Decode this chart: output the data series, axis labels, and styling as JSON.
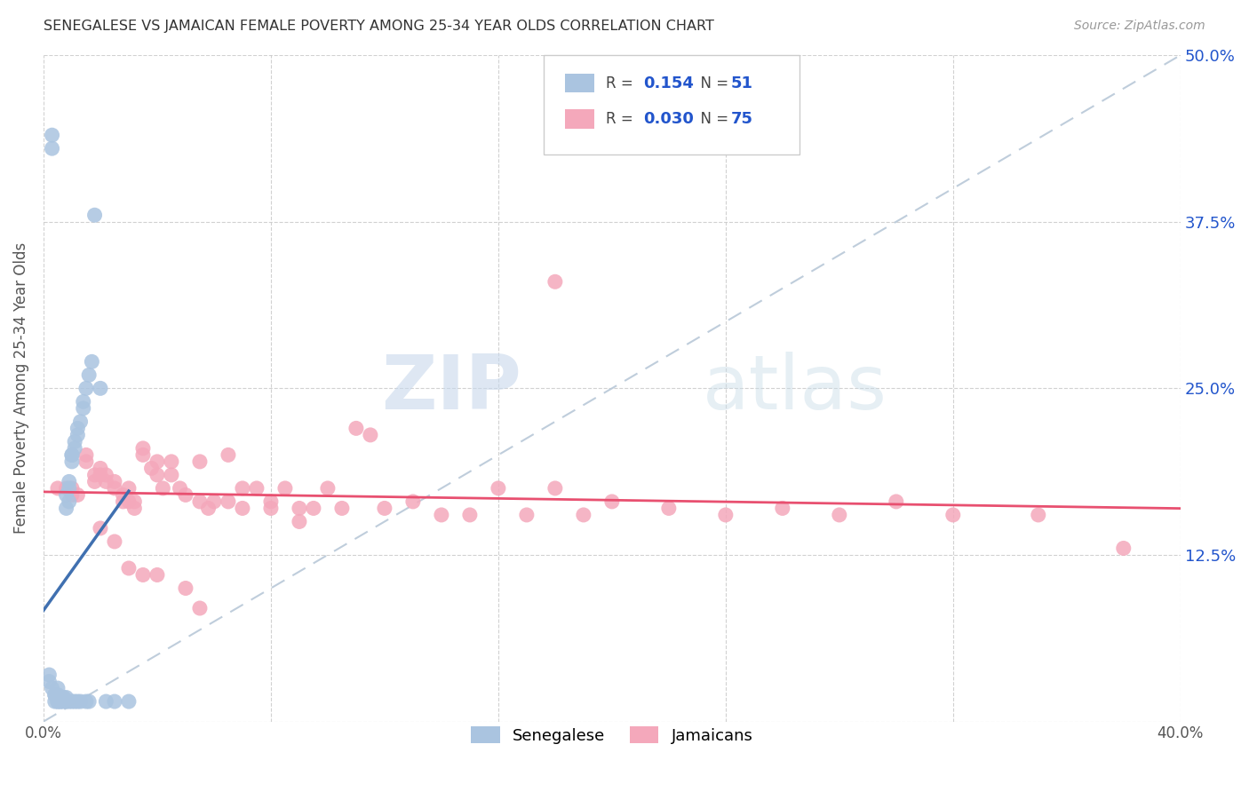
{
  "title": "SENEGALESE VS JAMAICAN FEMALE POVERTY AMONG 25-34 YEAR OLDS CORRELATION CHART",
  "source": "Source: ZipAtlas.com",
  "ylabel": "Female Poverty Among 25-34 Year Olds",
  "xlim": [
    0.0,
    0.4
  ],
  "ylim": [
    0.0,
    0.5
  ],
  "senegalese_R": "0.154",
  "senegalese_N": "51",
  "jamaicans_R": "0.030",
  "jamaicans_N": "75",
  "watermark_zip": "ZIP",
  "watermark_atlas": "atlas",
  "senegalese_color": "#aac4e0",
  "jamaicans_color": "#f4a8bb",
  "senegalese_line_color": "#4070b0",
  "jamaicans_line_color": "#e85070",
  "diagonal_color": "#b8c8d8",
  "legend_val_color": "#2255cc",
  "senegalese_x": [
    0.002,
    0.002,
    0.003,
    0.003,
    0.003,
    0.004,
    0.004,
    0.004,
    0.005,
    0.005,
    0.005,
    0.005,
    0.006,
    0.006,
    0.006,
    0.007,
    0.007,
    0.007,
    0.007,
    0.008,
    0.008,
    0.008,
    0.008,
    0.009,
    0.009,
    0.009,
    0.009,
    0.01,
    0.01,
    0.01,
    0.01,
    0.011,
    0.011,
    0.011,
    0.012,
    0.012,
    0.012,
    0.013,
    0.013,
    0.014,
    0.014,
    0.015,
    0.015,
    0.016,
    0.016,
    0.017,
    0.018,
    0.02,
    0.022,
    0.025,
    0.03
  ],
  "senegalese_y": [
    0.035,
    0.03,
    0.43,
    0.44,
    0.025,
    0.02,
    0.015,
    0.02,
    0.02,
    0.015,
    0.015,
    0.025,
    0.015,
    0.018,
    0.015,
    0.018,
    0.015,
    0.016,
    0.018,
    0.16,
    0.17,
    0.015,
    0.018,
    0.18,
    0.175,
    0.165,
    0.015,
    0.195,
    0.2,
    0.2,
    0.015,
    0.205,
    0.21,
    0.015,
    0.22,
    0.215,
    0.015,
    0.225,
    0.015,
    0.24,
    0.235,
    0.25,
    0.015,
    0.26,
    0.015,
    0.27,
    0.38,
    0.25,
    0.015,
    0.015,
    0.015
  ],
  "jamaicans_x": [
    0.005,
    0.008,
    0.01,
    0.01,
    0.012,
    0.015,
    0.015,
    0.018,
    0.018,
    0.02,
    0.02,
    0.022,
    0.022,
    0.025,
    0.025,
    0.028,
    0.028,
    0.03,
    0.03,
    0.032,
    0.032,
    0.035,
    0.035,
    0.038,
    0.04,
    0.04,
    0.042,
    0.045,
    0.045,
    0.048,
    0.05,
    0.055,
    0.055,
    0.058,
    0.06,
    0.065,
    0.065,
    0.07,
    0.07,
    0.075,
    0.08,
    0.08,
    0.085,
    0.09,
    0.095,
    0.1,
    0.105,
    0.11,
    0.115,
    0.12,
    0.13,
    0.14,
    0.15,
    0.16,
    0.17,
    0.18,
    0.19,
    0.2,
    0.22,
    0.24,
    0.26,
    0.28,
    0.3,
    0.32,
    0.35,
    0.18,
    0.09,
    0.05,
    0.03,
    0.025,
    0.02,
    0.035,
    0.04,
    0.055,
    0.38
  ],
  "jamaicans_y": [
    0.175,
    0.175,
    0.17,
    0.175,
    0.17,
    0.195,
    0.2,
    0.185,
    0.18,
    0.185,
    0.19,
    0.18,
    0.185,
    0.175,
    0.18,
    0.165,
    0.17,
    0.165,
    0.175,
    0.165,
    0.16,
    0.2,
    0.205,
    0.19,
    0.185,
    0.195,
    0.175,
    0.195,
    0.185,
    0.175,
    0.17,
    0.165,
    0.195,
    0.16,
    0.165,
    0.2,
    0.165,
    0.175,
    0.16,
    0.175,
    0.165,
    0.16,
    0.175,
    0.16,
    0.16,
    0.175,
    0.16,
    0.22,
    0.215,
    0.16,
    0.165,
    0.155,
    0.155,
    0.175,
    0.155,
    0.175,
    0.155,
    0.165,
    0.16,
    0.155,
    0.16,
    0.155,
    0.165,
    0.155,
    0.155,
    0.33,
    0.15,
    0.1,
    0.115,
    0.135,
    0.145,
    0.11,
    0.11,
    0.085,
    0.13
  ]
}
